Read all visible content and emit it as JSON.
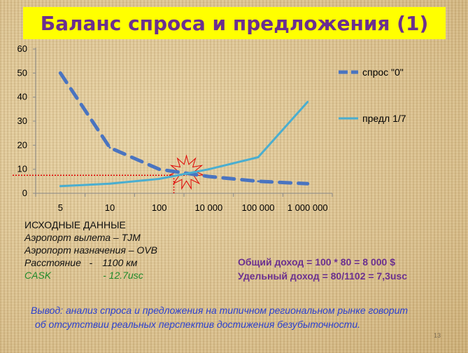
{
  "title": "Баланс спроса и предложения (1)",
  "chart_data": {
    "type": "line",
    "categories": [
      "5",
      "10",
      "100",
      "10 000",
      "100 000",
      "1 000 000"
    ],
    "ylim": [
      0,
      60
    ],
    "yticks": [
      "0",
      "10",
      "20",
      "30",
      "40",
      "50",
      "60"
    ],
    "series": [
      {
        "name": "спрос \"0\"",
        "values": [
          50,
          19,
          10,
          7,
          5,
          4
        ],
        "color": "#4a74c0",
        "style": "dashed"
      },
      {
        "name": "предл 1/7",
        "values": [
          3,
          4,
          6,
          10,
          15,
          38
        ],
        "color": "#4aaed0",
        "style": "solid"
      }
    ],
    "intersection": {
      "y": 7.5,
      "color": "#e00000"
    },
    "grid": false,
    "legend": "right"
  },
  "input_data": {
    "heading": "ИСХОДНЫЕ ДАННЫЕ",
    "departure": "Аэропорт вылета – TJM",
    "arrival": "Аэропорт  назначения – OVB",
    "distance_label": "Расстояние   -",
    "distance_value": "1100 км",
    "cask_label": "CASK",
    "cask_value": "- 12.7usc"
  },
  "income": {
    "total": "Общий доход = 100 * 80 = 8 000 $",
    "unit": "Удельный доход  = 80/1102 = 7,3usc"
  },
  "conclusion": {
    "line1": "Вывод: анализ спроса и предложения на типичном региональном рынке говорит",
    "line2": "об отсутствии реальных  перспектив достижения  безубыточности."
  },
  "slide_number": "13"
}
